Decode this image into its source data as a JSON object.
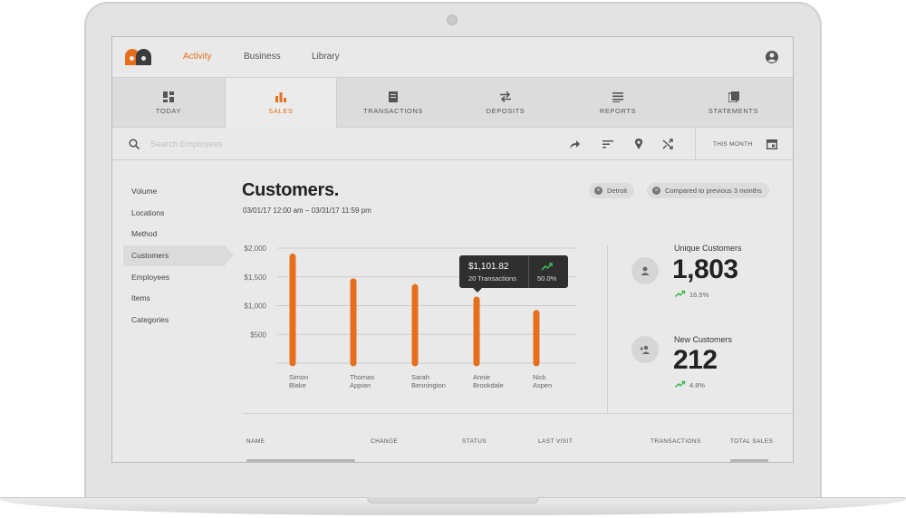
{
  "colors": {
    "accent": "#e66f1e",
    "trend_up": "#3bb54a",
    "dark": "#2f2f2f"
  },
  "topnav": {
    "links": [
      "Activity",
      "Business",
      "Library"
    ],
    "active_link": "Activity",
    "user_icon": "user-circle-icon"
  },
  "tabs": [
    {
      "label": "TODAY",
      "icon": "dashboard-icon"
    },
    {
      "label": "SALES",
      "icon": "bar-chart-icon",
      "active": true
    },
    {
      "label": "TRANSACTIONS",
      "icon": "receipt-icon"
    },
    {
      "label": "DEPOSITS",
      "icon": "swap-arrows-icon"
    },
    {
      "label": "REPORTS",
      "icon": "list-icon"
    },
    {
      "label": "STATEMENTS",
      "icon": "documents-icon"
    }
  ],
  "toolbar": {
    "search_placeholder": "Search Employees",
    "tools": [
      "share-icon",
      "sort-icon",
      "location-pin-icon",
      "shuffle-icon"
    ],
    "period_label": "THIS MONTH",
    "calendar_icon": "calendar-icon"
  },
  "sidebar": {
    "items": [
      "Volume",
      "Locations",
      "Method",
      "Customers",
      "Employees",
      "Items",
      "Categories"
    ],
    "active": "Customers"
  },
  "main": {
    "title": "Customers.",
    "date_range": "03/01/17 12:00 am – 03/31/17 11:59 pm",
    "filters": [
      "Detroit",
      "Compared to previous 3 months"
    ]
  },
  "chart_data": {
    "type": "bar",
    "categories": [
      "Simon Blake",
      "Thomas Appian",
      "Sarah Bennington",
      "Annie Brookdale",
      "Nick Aspen"
    ],
    "category_lines": [
      [
        "Simon",
        "Blake"
      ],
      [
        "Thomas",
        "Appian"
      ],
      [
        "Sarah",
        "Bennington"
      ],
      [
        "Annie",
        "Brookdale"
      ],
      [
        "Nick",
        "Aspen"
      ]
    ],
    "values": [
      1850,
      1420,
      1320,
      1101.82,
      870
    ],
    "y_ticks": [
      "$2,000",
      "$1,500",
      "$1,000",
      "$500"
    ],
    "y_tick_values": [
      2000,
      1500,
      1000,
      500
    ],
    "ylim": [
      0,
      2000
    ],
    "grid": true,
    "highlight_index": 3,
    "tooltip": {
      "value": "$1,101.82",
      "sub": "20 Transactions",
      "change": "50.0%"
    }
  },
  "stats": {
    "unique": {
      "label": "Unique Customers",
      "value": "1,803",
      "change": "16.5%",
      "icon": "user-icon"
    },
    "new": {
      "label": "New Customers",
      "value": "212",
      "change": "4.8%",
      "icon": "add-user-icon"
    }
  },
  "table": {
    "headers": [
      "NAME",
      "CHANGE",
      "STATUS",
      "LAST VISIT",
      "TRANSACTIONS",
      "TOTAL SALES"
    ]
  }
}
